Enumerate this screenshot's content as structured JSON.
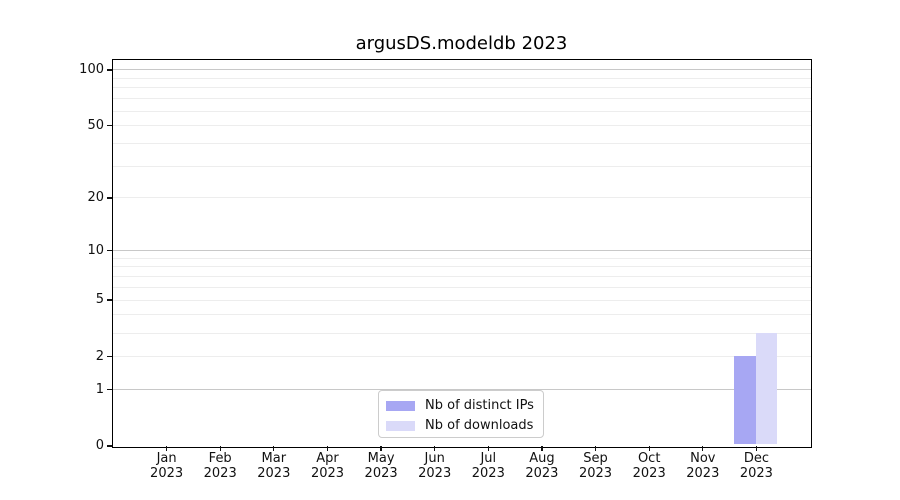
{
  "title": "argusDS.modeldb 2023",
  "chart_data": {
    "type": "bar",
    "title": "argusDS.modeldb 2023",
    "x_categories": [
      {
        "month": "Jan",
        "year": "2023"
      },
      {
        "month": "Feb",
        "year": "2023"
      },
      {
        "month": "Mar",
        "year": "2023"
      },
      {
        "month": "Apr",
        "year": "2023"
      },
      {
        "month": "May",
        "year": "2023"
      },
      {
        "month": "Jun",
        "year": "2023"
      },
      {
        "month": "Jul",
        "year": "2023"
      },
      {
        "month": "Aug",
        "year": "2023"
      },
      {
        "month": "Sep",
        "year": "2023"
      },
      {
        "month": "Oct",
        "year": "2023"
      },
      {
        "month": "Nov",
        "year": "2023"
      },
      {
        "month": "Dec",
        "year": "2023"
      }
    ],
    "series": [
      {
        "name": "Nb of distinct IPs",
        "color": "#a7a7f3",
        "values": [
          0,
          0,
          0,
          0,
          0,
          0,
          0,
          0,
          0,
          0,
          0,
          2
        ]
      },
      {
        "name": "Nb of downloads",
        "color": "#dadaf9",
        "values": [
          0,
          0,
          0,
          0,
          0,
          0,
          0,
          0,
          0,
          0,
          0,
          3
        ]
      }
    ],
    "y_axis": {
      "scale": "log1p",
      "ticks": [
        0,
        1,
        2,
        5,
        10,
        20,
        50,
        100
      ],
      "max": 113,
      "major_gridlines": [
        1,
        10,
        100
      ],
      "minor_gridlines": [
        2,
        3,
        4,
        5,
        6,
        7,
        8,
        9,
        20,
        30,
        40,
        50,
        60,
        70,
        80,
        90
      ]
    },
    "legend": {
      "position": "lower-center"
    },
    "layout": {
      "grid": true,
      "legend_border": true
    },
    "colors": {
      "grid_major": "#c8c8c8",
      "grid_minor": "#ededed",
      "spine": "#000000",
      "background": "#ffffff"
    }
  }
}
